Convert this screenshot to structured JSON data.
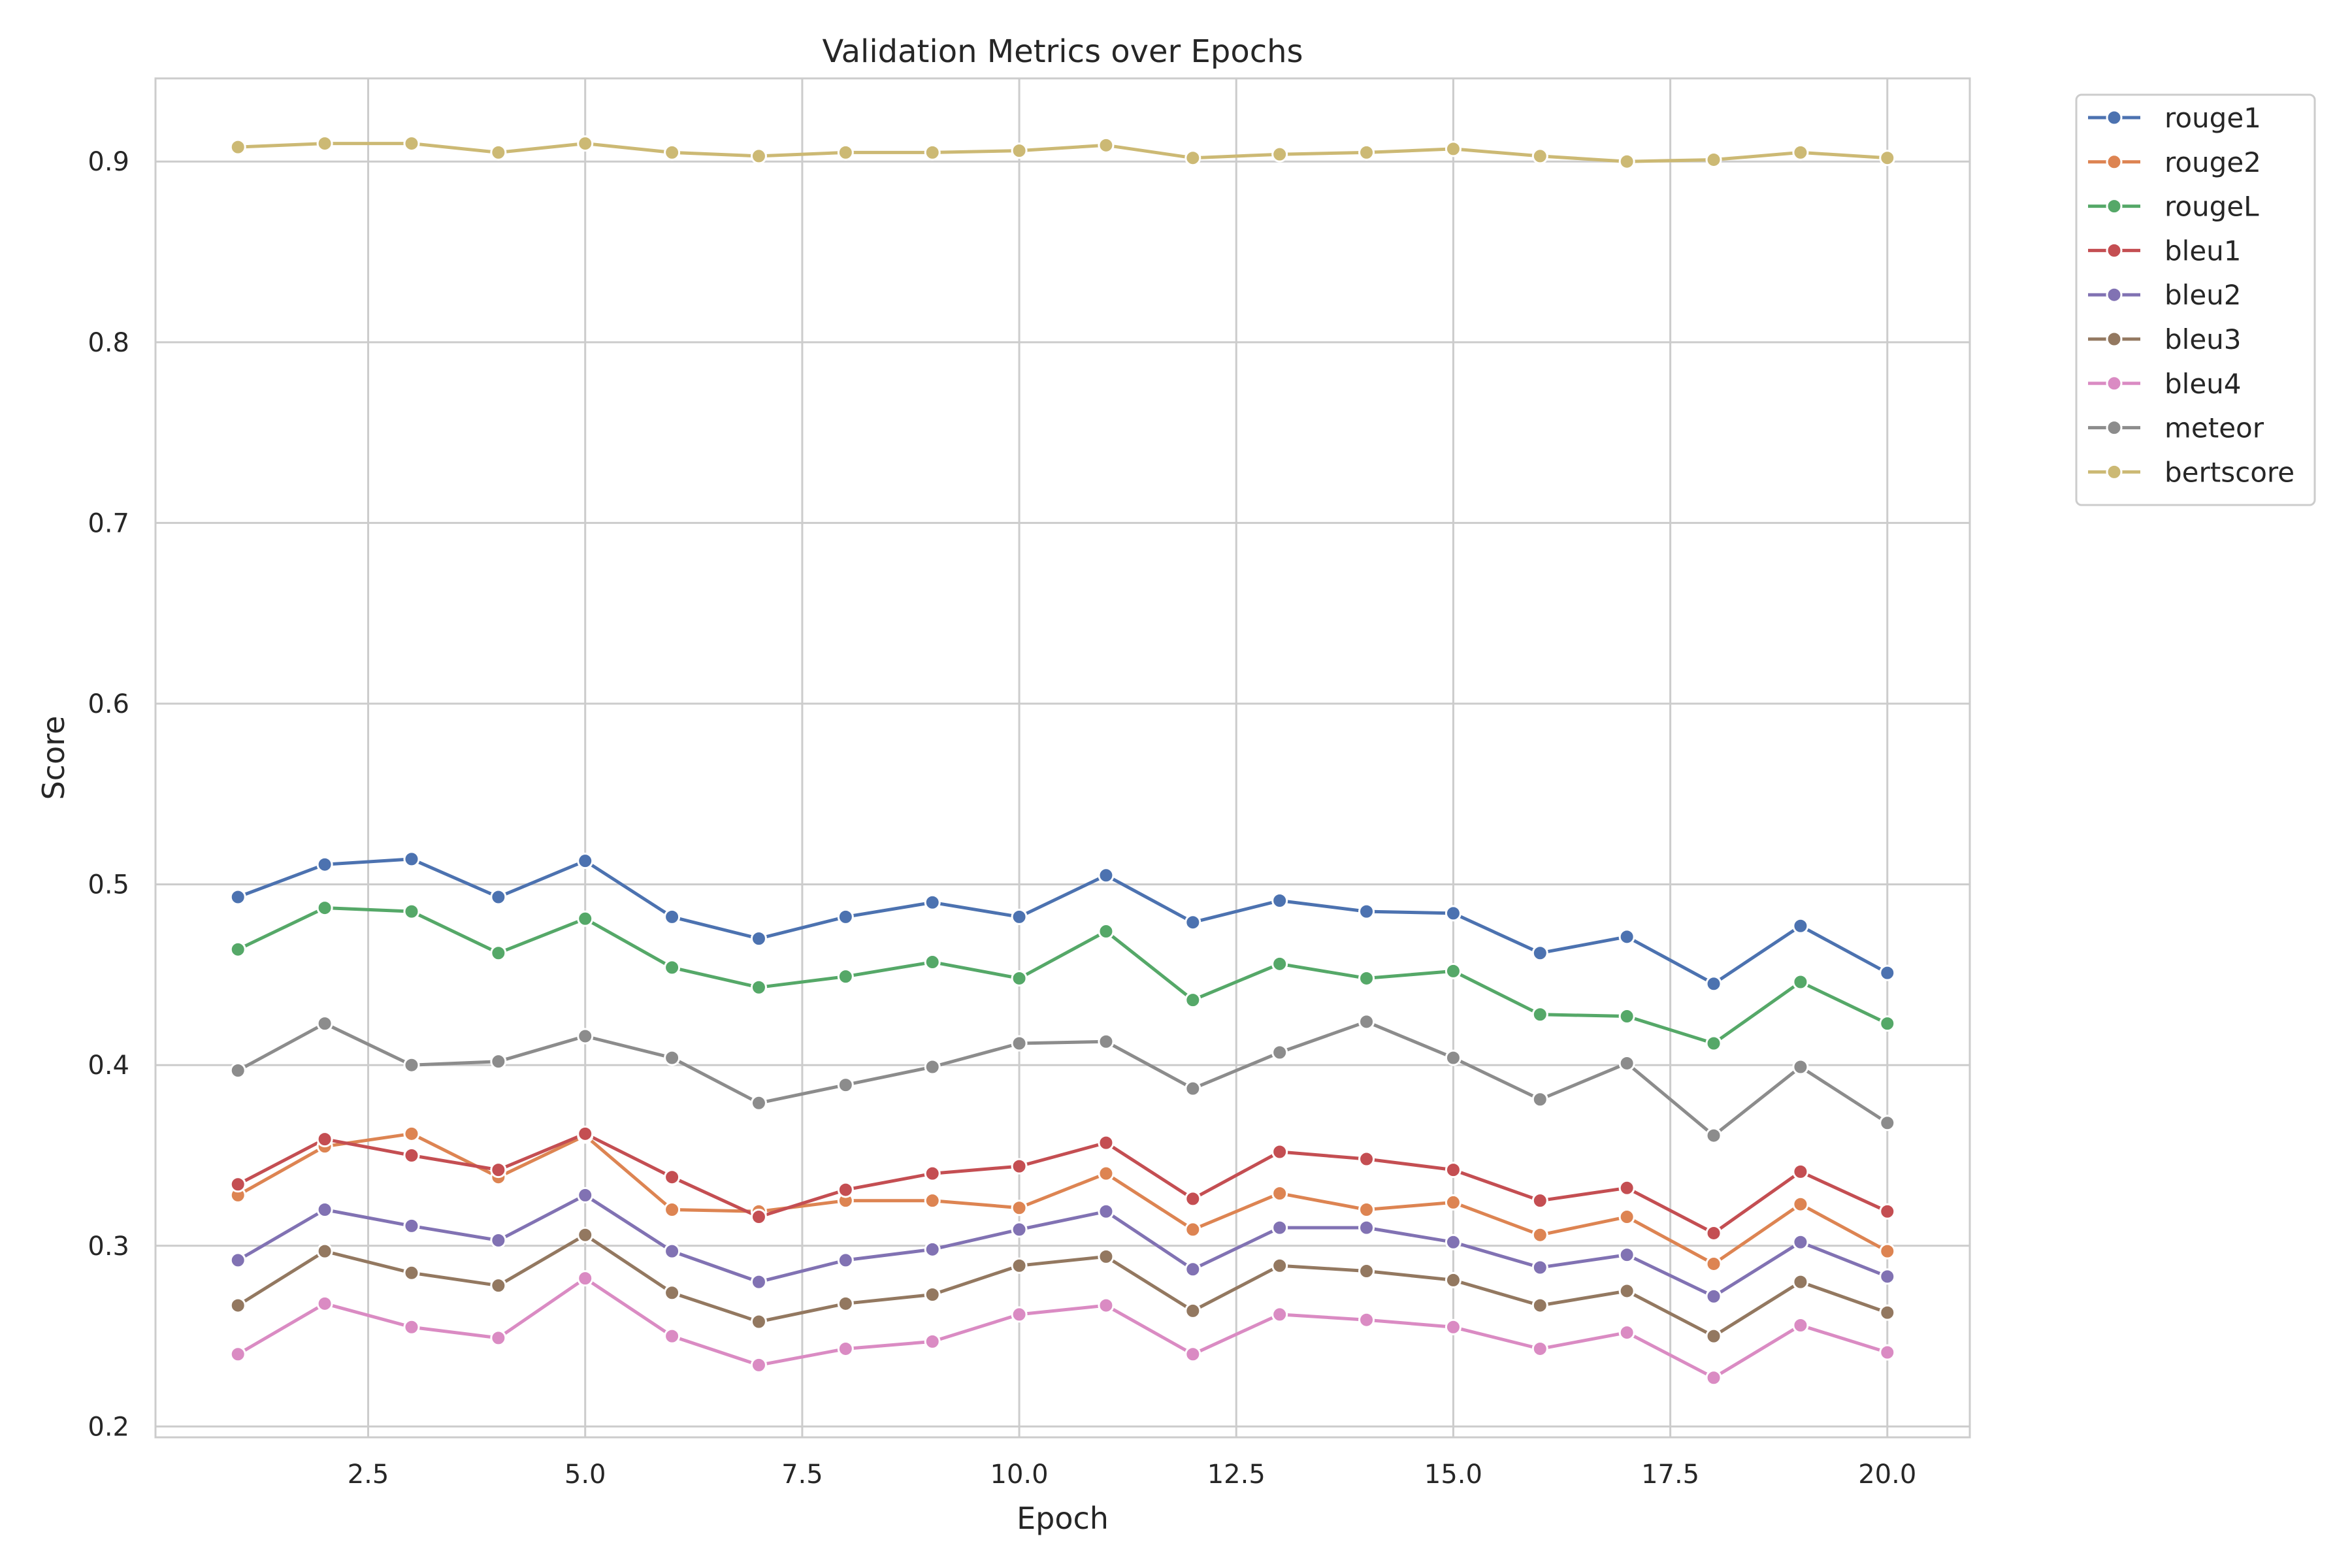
{
  "chart_data": {
    "type": "line",
    "title": "Validation Metrics over Epochs",
    "xlabel": "Epoch",
    "ylabel": "Score",
    "xlim": [
      0.05,
      20.95
    ],
    "ylim": [
      0.194,
      0.946
    ],
    "xticks": [
      2.5,
      5.0,
      7.5,
      10.0,
      12.5,
      15.0,
      17.5,
      20.0
    ],
    "xtick_labels": [
      "2.5",
      "5.0",
      "7.5",
      "10.0",
      "12.5",
      "15.0",
      "17.5",
      "20.0"
    ],
    "yticks": [
      0.2,
      0.3,
      0.4,
      0.5,
      0.6,
      0.7,
      0.8,
      0.9
    ],
    "ytick_labels": [
      "0.2",
      "0.3",
      "0.4",
      "0.5",
      "0.6",
      "0.7",
      "0.8",
      "0.9"
    ],
    "grid": true,
    "legend_position": "outside-top-right",
    "x": [
      1,
      2,
      3,
      4,
      5,
      6,
      7,
      8,
      9,
      10,
      11,
      12,
      13,
      14,
      15,
      16,
      17,
      18,
      19,
      20
    ],
    "series": [
      {
        "name": "rouge1",
        "color": "#4c72b0",
        "values": [
          0.493,
          0.511,
          0.514,
          0.493,
          0.513,
          0.482,
          0.47,
          0.482,
          0.49,
          0.482,
          0.505,
          0.479,
          0.491,
          0.485,
          0.484,
          0.462,
          0.471,
          0.445,
          0.477,
          0.451
        ]
      },
      {
        "name": "rouge2",
        "color": "#dd8452",
        "values": [
          0.328,
          0.355,
          0.362,
          0.338,
          0.361,
          0.32,
          0.319,
          0.325,
          0.325,
          0.321,
          0.34,
          0.309,
          0.329,
          0.32,
          0.324,
          0.306,
          0.316,
          0.29,
          0.323,
          0.297
        ]
      },
      {
        "name": "rougeL",
        "color": "#55a868",
        "values": [
          0.464,
          0.487,
          0.485,
          0.462,
          0.481,
          0.454,
          0.443,
          0.449,
          0.457,
          0.448,
          0.474,
          0.436,
          0.456,
          0.448,
          0.452,
          0.428,
          0.427,
          0.412,
          0.446,
          0.423
        ]
      },
      {
        "name": "bleu1",
        "color": "#c44e52",
        "values": [
          0.334,
          0.359,
          0.35,
          0.342,
          0.362,
          0.338,
          0.316,
          0.331,
          0.34,
          0.344,
          0.357,
          0.326,
          0.352,
          0.348,
          0.342,
          0.325,
          0.332,
          0.307,
          0.341,
          0.319
        ]
      },
      {
        "name": "bleu2",
        "color": "#8172b3",
        "values": [
          0.292,
          0.32,
          0.311,
          0.303,
          0.328,
          0.297,
          0.28,
          0.292,
          0.298,
          0.309,
          0.319,
          0.287,
          0.31,
          0.31,
          0.302,
          0.288,
          0.295,
          0.272,
          0.302,
          0.283
        ]
      },
      {
        "name": "bleu3",
        "color": "#937860",
        "values": [
          0.267,
          0.297,
          0.285,
          0.278,
          0.306,
          0.274,
          0.258,
          0.268,
          0.273,
          0.289,
          0.294,
          0.264,
          0.289,
          0.286,
          0.281,
          0.267,
          0.275,
          0.25,
          0.28,
          0.263
        ]
      },
      {
        "name": "bleu4",
        "color": "#da8bc3",
        "values": [
          0.24,
          0.268,
          0.255,
          0.249,
          0.282,
          0.25,
          0.234,
          0.243,
          0.247,
          0.262,
          0.267,
          0.24,
          0.262,
          0.259,
          0.255,
          0.243,
          0.252,
          0.227,
          0.256,
          0.241
        ]
      },
      {
        "name": "meteor",
        "color": "#8c8c8c",
        "values": [
          0.397,
          0.423,
          0.4,
          0.402,
          0.416,
          0.404,
          0.379,
          0.389,
          0.399,
          0.412,
          0.413,
          0.387,
          0.407,
          0.424,
          0.404,
          0.381,
          0.401,
          0.361,
          0.399,
          0.368
        ]
      },
      {
        "name": "bertscore",
        "color": "#ccb974",
        "values": [
          0.908,
          0.91,
          0.91,
          0.905,
          0.91,
          0.905,
          0.903,
          0.905,
          0.905,
          0.906,
          0.909,
          0.902,
          0.904,
          0.905,
          0.907,
          0.903,
          0.9,
          0.901,
          0.905,
          0.902
        ]
      }
    ]
  }
}
